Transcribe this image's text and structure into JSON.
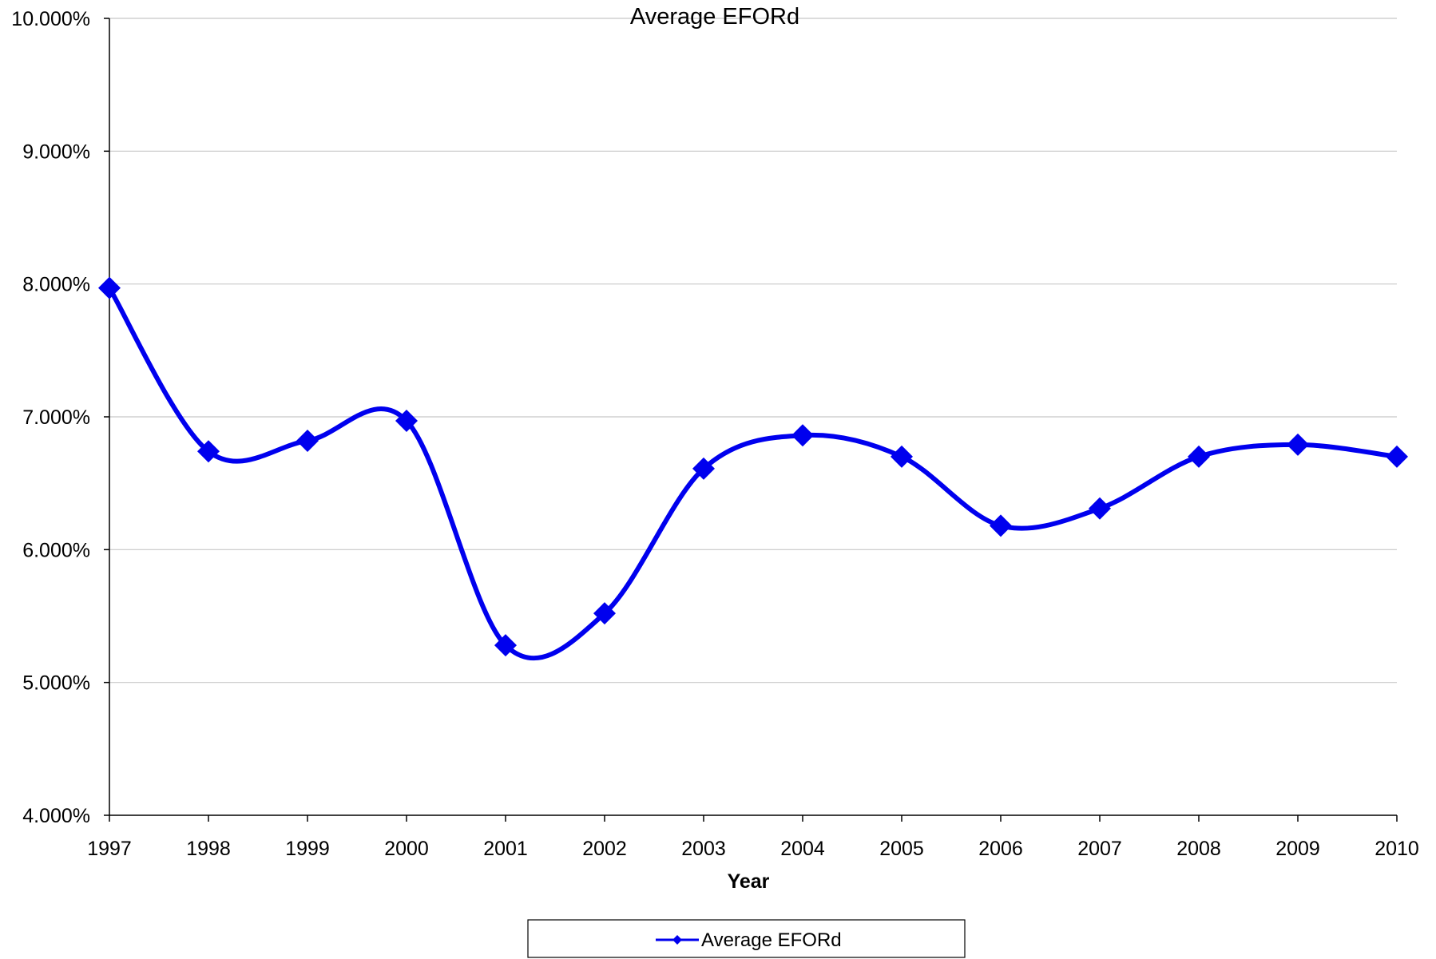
{
  "chart_data": {
    "type": "line",
    "title": "Average EFORd",
    "xlabel": "Year",
    "ylabel": "",
    "categories": [
      "1997",
      "1998",
      "1999",
      "2000",
      "2001",
      "2002",
      "2003",
      "2004",
      "2005",
      "2006",
      "2007",
      "2008",
      "2009",
      "2010"
    ],
    "series": [
      {
        "name": "Average EFORd",
        "values": [
          7.97,
          6.74,
          6.82,
          6.97,
          5.28,
          5.52,
          6.61,
          6.86,
          6.7,
          6.18,
          6.31,
          6.7,
          6.79,
          6.7
        ]
      }
    ],
    "ylim": [
      4,
      10
    ],
    "y_ticks": [
      "4.000%",
      "5.000%",
      "6.000%",
      "7.000%",
      "8.000%",
      "9.000%",
      "10.000%"
    ],
    "line_style": "smoothed",
    "marker": "diamond",
    "grid": "horizontal",
    "legend_position": "bottom",
    "colors": {
      "series": "#0000ee",
      "grid": "#c8c8c8",
      "axis": "#000000"
    }
  }
}
